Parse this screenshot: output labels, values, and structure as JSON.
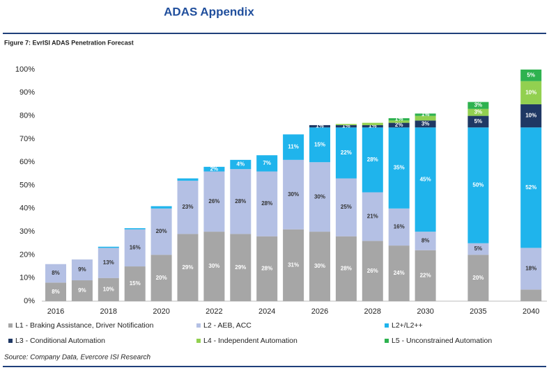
{
  "header": {
    "title": "ADAS Appendix"
  },
  "chart_data": {
    "type": "bar",
    "stacked": true,
    "title": "Figure 7: EvrISI ADAS Penetration Forecast",
    "source": "Source: Company Data, Evercore ISI Research",
    "categories": [
      "2016",
      null,
      "2018",
      null,
      "2020",
      null,
      "2022",
      null,
      "2024",
      null,
      "2026",
      null,
      "2028",
      null,
      "2030",
      "2035",
      "2040"
    ],
    "ylim": [
      0,
      100
    ],
    "yticks": [
      {
        "value": 0,
        "label": "0%"
      },
      {
        "value": 10,
        "label": "10%"
      },
      {
        "value": 20,
        "label": "20%"
      },
      {
        "value": 30,
        "label": "30%"
      },
      {
        "value": 40,
        "label": "40%"
      },
      {
        "value": 50,
        "label": "50%"
      },
      {
        "value": 60,
        "label": "60%"
      },
      {
        "value": 70,
        "label": "70%"
      },
      {
        "value": 80,
        "label": "80%"
      },
      {
        "value": 90,
        "label": "90%"
      },
      {
        "value": 100,
        "label": "100%"
      }
    ],
    "series": [
      {
        "name": "L1 - Braking Assistance, Driver Notification",
        "color": "#a6a6a6",
        "values": [
          8,
          9,
          10,
          15,
          20,
          29,
          30,
          29,
          28,
          31,
          30,
          28,
          26,
          24,
          22,
          20,
          5
        ],
        "value_labels": [
          "8%",
          "9%",
          "10%",
          "15%",
          "20%",
          "29%",
          "30%",
          "29%",
          "28%",
          "31%",
          "30%",
          "28%",
          "26%",
          "24%",
          "22%",
          "20%",
          null
        ]
      },
      {
        "name": "L2 - AEB, ACC",
        "color": "#b4c0e4",
        "values": [
          8,
          9,
          13,
          16,
          20,
          23,
          26,
          28,
          28,
          30,
          30,
          25,
          21,
          16,
          8,
          5,
          18
        ],
        "value_labels": [
          "8%",
          "9%",
          "13%",
          "16%",
          "20%",
          "23%",
          "26%",
          "28%",
          "28%",
          "30%",
          "30%",
          "25%",
          "21%",
          "16%",
          "8%",
          "5%",
          "18%"
        ]
      },
      {
        "name": "L2+/L2++",
        "color": "#1fb4ec",
        "values": [
          null,
          null,
          0.5,
          0.5,
          1,
          1,
          2,
          4,
          7,
          11,
          15,
          22,
          28,
          35,
          45,
          50,
          52
        ],
        "value_labels": [
          null,
          null,
          null,
          null,
          null,
          null,
          "2%",
          "4%",
          "7%",
          "11%",
          "15%",
          "22%",
          "28%",
          "35%",
          "45%",
          "50%",
          "52%"
        ]
      },
      {
        "name": "L3 - Conditional Automation",
        "color": "#1f3864",
        "values": [
          null,
          null,
          null,
          null,
          null,
          null,
          null,
          null,
          null,
          null,
          1,
          1,
          1,
          2,
          3,
          5,
          10
        ],
        "value_labels": [
          null,
          null,
          null,
          null,
          null,
          null,
          null,
          null,
          null,
          null,
          "1%",
          "1%",
          "1%",
          "2%",
          "3%",
          "5%",
          "10%"
        ]
      },
      {
        "name": "L4 - Independent Automation",
        "color": "#92d050",
        "values": [
          null,
          null,
          null,
          null,
          null,
          null,
          null,
          null,
          null,
          null,
          null,
          0.5,
          1,
          1,
          2,
          3,
          10
        ],
        "value_labels": [
          null,
          null,
          null,
          null,
          null,
          null,
          null,
          null,
          null,
          null,
          null,
          null,
          null,
          null,
          null,
          "3%",
          "10%"
        ]
      },
      {
        "name": "L5 - Unconstrained Automation",
        "color": "#2eb24f",
        "values": [
          null,
          null,
          null,
          null,
          null,
          null,
          null,
          null,
          null,
          null,
          null,
          null,
          null,
          1,
          1,
          3,
          5
        ],
        "value_labels": [
          null,
          null,
          null,
          null,
          null,
          null,
          null,
          null,
          null,
          null,
          null,
          null,
          null,
          "1%",
          "1%",
          "3%",
          "5%"
        ]
      }
    ]
  }
}
